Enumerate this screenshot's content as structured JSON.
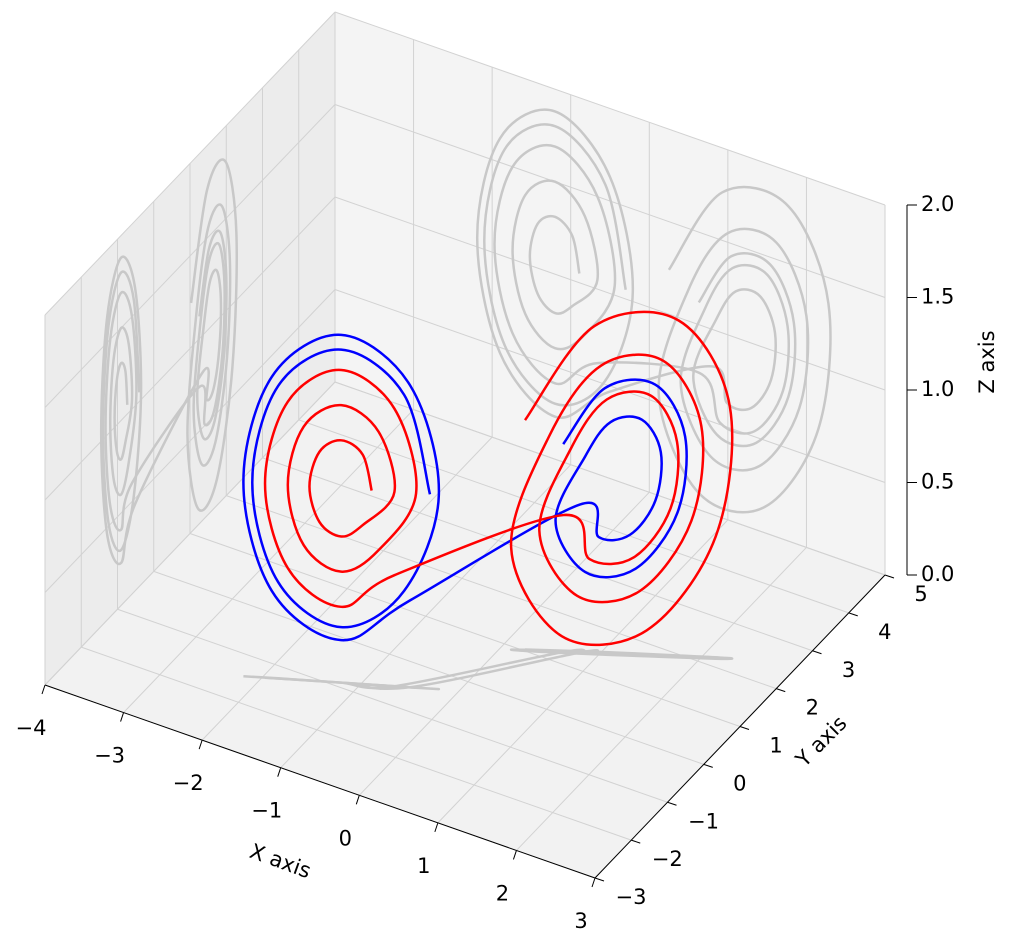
{
  "chart_data": {
    "type": "line3d",
    "xlabel": "X axis",
    "ylabel": "Y axis",
    "zlabel": "Z axis",
    "xlim": [
      -4,
      3
    ],
    "ylim": [
      -3,
      5
    ],
    "zlim": [
      0,
      2
    ],
    "xticks": [
      {
        "value": -4,
        "label": "−4"
      },
      {
        "value": -3,
        "label": "−3"
      },
      {
        "value": -2,
        "label": "−2"
      },
      {
        "value": -1,
        "label": "−1"
      },
      0,
      1,
      2,
      3
    ],
    "yticks": [
      {
        "value": -3,
        "label": "−3"
      },
      {
        "value": -2,
        "label": "−2"
      },
      {
        "value": -1,
        "label": "−1"
      },
      0,
      1,
      2,
      3,
      4,
      5
    ],
    "zticks": [
      {
        "value": 0,
        "label": "0.0"
      },
      0.5,
      {
        "value": 1,
        "label": "1.0"
      },
      1.5,
      {
        "value": 2,
        "label": "2.0"
      }
    ],
    "grid": true,
    "projections": true,
    "projection_color": "#c8c8c8",
    "series": [
      {
        "color": "#0000ff",
        "x": [
          -0.3,
          -0.56,
          -1.2,
          -1.84,
          -2.1,
          -1.84,
          -1.2,
          -0.56,
          -0.21,
          -0.5,
          -1.2,
          -1.9,
          -2.19,
          -1.9,
          -1.2,
          -0.5,
          0.8,
          0.99,
          1.3,
          1.55,
          1.6,
          1.41,
          1.1,
          0.85,
          0.56,
          0.86,
          1.36,
          1.77,
          1.84,
          1.54,
          1.04,
          0.63
        ],
        "y": [
          -0.4,
          -0.55,
          -0.9,
          -1.25,
          -1.4,
          -1.25,
          -0.9,
          -0.55,
          -0.35,
          -0.51,
          -0.9,
          -1.29,
          -1.45,
          -1.29,
          -0.9,
          -0.51,
          1.35,
          1.46,
          1.65,
          1.81,
          1.85,
          1.74,
          1.55,
          1.39,
          1.2,
          1.37,
          1.68,
          1.94,
          2.0,
          1.83,
          1.52,
          1.26
        ],
        "z": [
          1.05,
          1.58,
          1.8,
          1.58,
          1.05,
          0.52,
          0.3,
          0.52,
          1.05,
          1.63,
          1.88,
          1.63,
          1.05,
          0.47,
          0.23,
          0.47,
          0.8,
          0.63,
          0.65,
          0.84,
          1.1,
          1.27,
          1.25,
          1.06,
          0.71,
          0.44,
          0.47,
          0.78,
          1.19,
          1.46,
          1.43,
          1.12
        ]
      },
      {
        "color": "#ff0000",
        "x": [
          -0.89,
          -0.98,
          -1.2,
          -1.42,
          -1.52,
          -1.42,
          -1.2,
          -0.98,
          -0.66,
          -0.82,
          -1.2,
          -1.58,
          -1.74,
          -1.58,
          -1.2,
          -0.82,
          -0.44,
          -0.66,
          -1.2,
          -1.74,
          -1.97,
          -1.74,
          -1.2,
          -0.66,
          0.64,
          0.9,
          1.34,
          1.7,
          1.76,
          1.5,
          1.06,
          0.71,
          0.4,
          0.78,
          1.4,
          1.91,
          2.0,
          1.62,
          1.0,
          0.49,
          0.12,
          0.63,
          1.47,
          2.15,
          2.28,
          1.77,
          0.93,
          0.25
        ],
        "y": [
          -0.73,
          -0.78,
          -0.9,
          -1.02,
          -1.08,
          -1.02,
          -0.9,
          -0.78,
          -0.6,
          -0.69,
          -0.9,
          -1.11,
          -1.2,
          -1.11,
          -0.9,
          -0.69,
          -0.48,
          -0.6,
          -0.9,
          -1.2,
          -1.33,
          -1.2,
          -0.9,
          -0.6,
          1.25,
          1.4,
          1.67,
          1.9,
          1.95,
          1.8,
          1.53,
          1.3,
          1.1,
          1.32,
          1.7,
          2.02,
          2.1,
          1.88,
          1.5,
          1.18,
          0.93,
          1.22,
          1.74,
          2.17,
          2.28,
          1.98,
          1.47,
          1.03
        ],
        "z": [
          1.05,
          1.24,
          1.31,
          1.24,
          1.05,
          0.86,
          0.79,
          0.86,
          1.05,
          1.37,
          1.5,
          1.37,
          1.05,
          0.73,
          0.6,
          0.73,
          1.05,
          1.5,
          1.69,
          1.5,
          1.05,
          0.6,
          0.41,
          0.6,
          0.74,
          0.51,
          0.53,
          0.8,
          1.16,
          1.4,
          1.37,
          1.1,
          0.65,
          0.31,
          0.35,
          0.74,
          1.25,
          1.59,
          1.55,
          1.16,
          0.55,
          0.09,
          0.14,
          0.66,
          1.36,
          1.81,
          1.76,
          1.24
        ]
      }
    ]
  }
}
